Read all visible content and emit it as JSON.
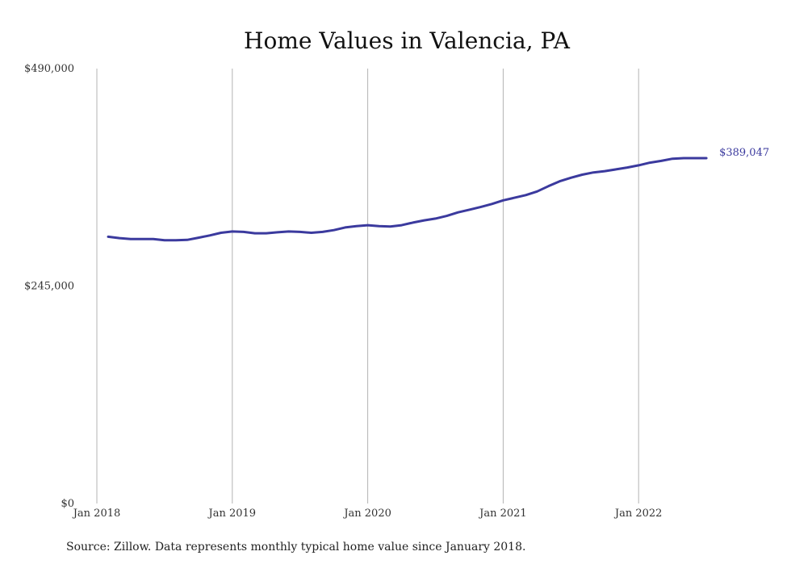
{
  "chart_data": {
    "type": "line",
    "title": "Home Values in Valencia, PA",
    "source": "Source: Zillow. Data represents monthly typical home value since January 2018.",
    "ylim": [
      0,
      490000
    ],
    "y_ticks": [
      {
        "value": 0,
        "label": "$0"
      },
      {
        "value": 245000,
        "label": "$245,000"
      },
      {
        "value": 490000,
        "label": "$490,000"
      }
    ],
    "x_ticks": [
      {
        "value": "2018-01",
        "label": "Jan 2018"
      },
      {
        "value": "2019-01",
        "label": "Jan 2019"
      },
      {
        "value": "2020-01",
        "label": "Jan 2020"
      },
      {
        "value": "2021-01",
        "label": "Jan 2021"
      },
      {
        "value": "2022-01",
        "label": "Jan 2022"
      }
    ],
    "grid": "vertical",
    "series_color": "#3b3a9e",
    "end_label": "$389,047",
    "x": [
      "2018-02",
      "2018-03",
      "2018-04",
      "2018-05",
      "2018-06",
      "2018-07",
      "2018-08",
      "2018-09",
      "2018-10",
      "2018-11",
      "2018-12",
      "2019-01",
      "2019-02",
      "2019-03",
      "2019-04",
      "2019-05",
      "2019-06",
      "2019-07",
      "2019-08",
      "2019-09",
      "2019-10",
      "2019-11",
      "2019-12",
      "2020-01",
      "2020-02",
      "2020-03",
      "2020-04",
      "2020-05",
      "2020-06",
      "2020-07",
      "2020-08",
      "2020-09",
      "2020-10",
      "2020-11",
      "2020-12",
      "2021-01",
      "2021-02",
      "2021-03",
      "2021-04",
      "2021-05",
      "2021-06",
      "2021-07",
      "2021-08",
      "2021-09",
      "2021-10",
      "2021-11",
      "2021-12",
      "2022-01",
      "2022-02",
      "2022-03",
      "2022-04",
      "2022-05",
      "2022-06",
      "2022-07"
    ],
    "y": [
      300500,
      299000,
      298000,
      298000,
      298000,
      296500,
      296500,
      297000,
      299500,
      302000,
      305000,
      306500,
      306000,
      304500,
      304500,
      305500,
      306500,
      306000,
      305000,
      306000,
      308000,
      311000,
      312500,
      313500,
      312500,
      312000,
      313500,
      316500,
      319000,
      321000,
      324000,
      328000,
      331000,
      334000,
      337500,
      341500,
      344500,
      347500,
      351500,
      357500,
      363000,
      367000,
      370500,
      373000,
      374500,
      376500,
      378500,
      381000,
      384000,
      386000,
      388500,
      389047,
      389047,
      389047
    ]
  }
}
